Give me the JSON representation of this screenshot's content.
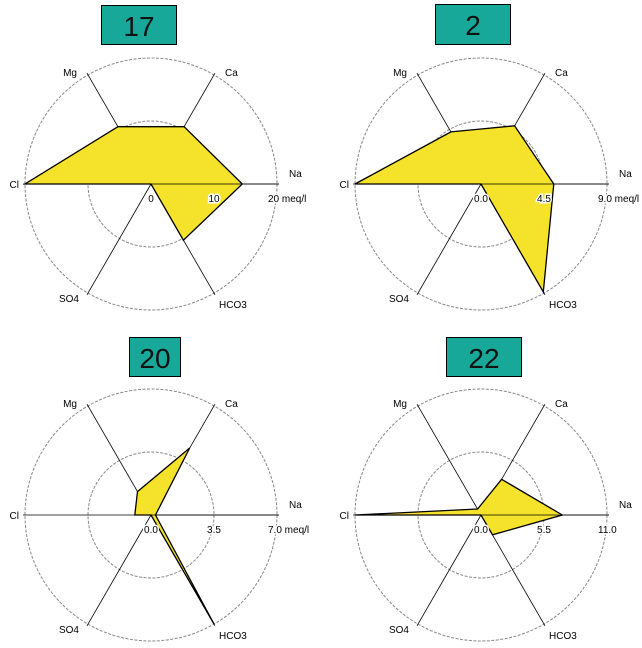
{
  "chart_data": [
    {
      "type": "radar",
      "title": "17",
      "axes": [
        "Na",
        "Ca",
        "Mg",
        "Cl",
        "SO4",
        "HCO3"
      ],
      "scale_labels": [
        "0",
        "10",
        "20 meq/l"
      ],
      "max": 20,
      "values": [
        14.5,
        10.5,
        10.5,
        20,
        0,
        10.3
      ],
      "fill_color": "#f5e22a"
    },
    {
      "type": "radar",
      "title": "2",
      "axes": [
        "Na",
        "Ca",
        "Mg",
        "Cl",
        "SO4",
        "HCO3"
      ],
      "scale_labels": [
        "0.0",
        "4.5",
        "9.0 meq/l"
      ],
      "max": 9,
      "values": [
        5.2,
        4.8,
        4.3,
        9.0,
        0,
        8.9
      ],
      "fill_color": "#f5e22a"
    },
    {
      "type": "radar",
      "title": "20",
      "axes": [
        "Na",
        "Ca",
        "Mg",
        "Cl",
        "SO4",
        "HCO3"
      ],
      "scale_labels": [
        "0.0",
        "3.5",
        "7.0 meq/l"
      ],
      "max": 7,
      "values": [
        0.25,
        4.3,
        1.5,
        0.9,
        0,
        7.0
      ],
      "fill_color": "#f5e22a"
    },
    {
      "type": "radar",
      "title": "22",
      "axes": [
        "Na",
        "Ca",
        "Mg",
        "Cl",
        "SO4",
        "HCO3"
      ],
      "scale_labels": [
        "0.0",
        "5.5",
        "11.0"
      ],
      "max": 11,
      "values": [
        7.1,
        3.6,
        0.6,
        11.0,
        0,
        2.0
      ],
      "fill_color": "#f5e22a"
    }
  ]
}
